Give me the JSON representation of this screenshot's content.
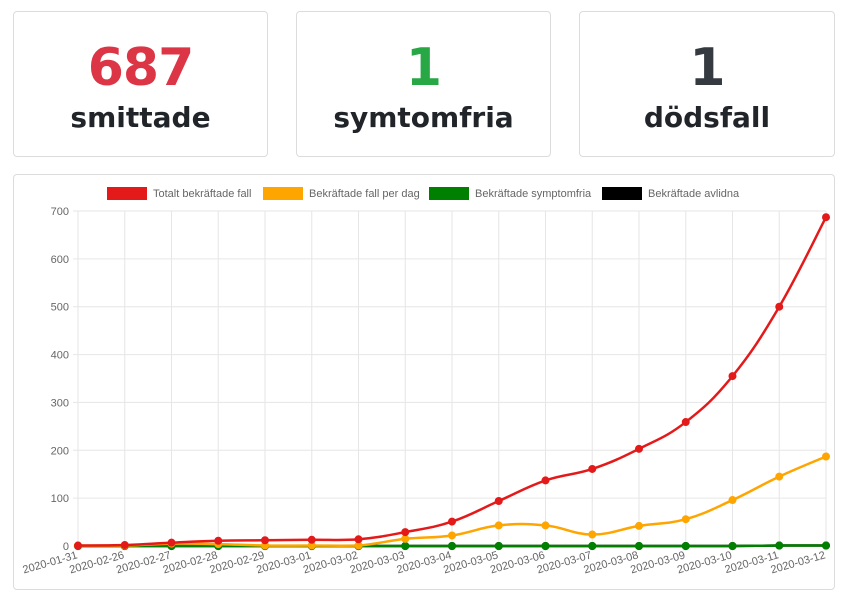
{
  "stats": {
    "infected": {
      "value": "687",
      "label": "smittade",
      "color": "#dc3545"
    },
    "asymptomatic": {
      "value": "1",
      "label": "symtomfria",
      "color": "#28a745"
    },
    "deaths": {
      "value": "1",
      "label": "dödsfall",
      "color": "#343a40"
    }
  },
  "chart_data": {
    "type": "line",
    "title": "",
    "xlabel": "",
    "ylabel": "",
    "ylim": [
      0,
      700
    ],
    "yticks": [
      0,
      100,
      200,
      300,
      400,
      500,
      600,
      700
    ],
    "grid": true,
    "legend_position": "top",
    "categories": [
      "2020-01-31",
      "2020-02-26",
      "2020-02-27",
      "2020-02-28",
      "2020-02-29",
      "2020-03-01",
      "2020-03-02",
      "2020-03-03",
      "2020-03-04",
      "2020-03-05",
      "2020-03-06",
      "2020-03-07",
      "2020-03-08",
      "2020-03-09",
      "2020-03-10",
      "2020-03-11",
      "2020-03-12"
    ],
    "series": [
      {
        "name": "Totalt bekräftade fall",
        "color": "#e41a1a",
        "values": [
          1,
          2,
          7,
          11,
          12,
          13,
          14,
          29,
          51,
          94,
          137,
          161,
          203,
          259,
          355,
          500,
          687
        ]
      },
      {
        "name": "Bekräftade fall per dag",
        "color": "#ffa500",
        "values": [
          1,
          1,
          5,
          4,
          1,
          1,
          1,
          15,
          22,
          43,
          43,
          24,
          42,
          56,
          96,
          145,
          187
        ]
      },
      {
        "name": "Bekräftade symptomfria",
        "color": "#008000",
        "values": [
          0,
          0,
          0,
          0,
          0,
          0,
          0,
          0,
          0,
          0,
          0,
          0,
          0,
          0,
          0,
          1,
          1
        ]
      },
      {
        "name": "Bekräftade avlidna",
        "color": "#000000",
        "values": [
          0,
          0,
          0,
          0,
          0,
          0,
          0,
          0,
          0,
          0,
          0,
          0,
          0,
          0,
          0,
          1,
          1
        ]
      }
    ]
  }
}
